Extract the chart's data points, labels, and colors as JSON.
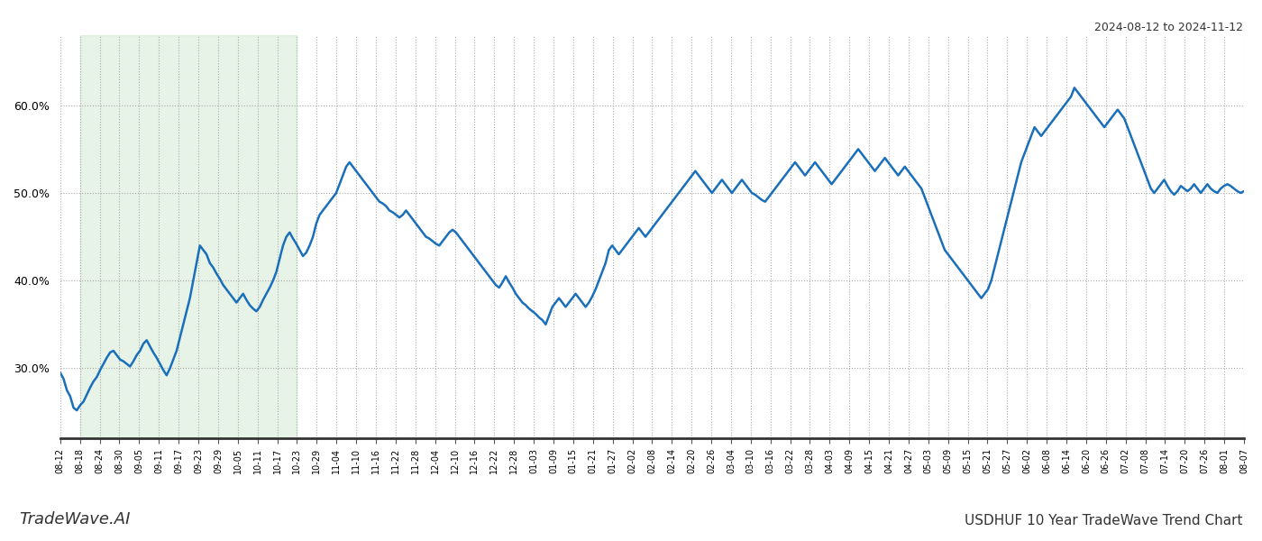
{
  "title_top_right": "2024-08-12 to 2024-11-12",
  "title_bottom_left": "TradeWave.AI",
  "title_bottom_right": "USDHUF 10 Year TradeWave Trend Chart",
  "line_color": "#1a6fba",
  "line_width": 1.8,
  "shade_color": "#c8e6c8",
  "shade_alpha": 0.45,
  "shade_start_label": "08-18",
  "shade_end_label": "10-23",
  "ylim": [
    22,
    68
  ],
  "yticks": [
    30,
    40,
    50,
    60
  ],
  "ytick_labels": [
    "30.0%",
    "40.0%",
    "50.0%",
    "60.0%"
  ],
  "background_color": "#ffffff",
  "grid_color": "#aaaaaa",
  "x_labels": [
    "08-12",
    "08-18",
    "08-24",
    "08-30",
    "09-05",
    "09-11",
    "09-17",
    "09-23",
    "09-29",
    "10-05",
    "10-11",
    "10-17",
    "10-23",
    "10-29",
    "11-04",
    "11-10",
    "11-16",
    "11-22",
    "11-28",
    "12-04",
    "12-10",
    "12-16",
    "12-22",
    "12-28",
    "01-03",
    "01-09",
    "01-15",
    "01-21",
    "01-27",
    "02-02",
    "02-08",
    "02-14",
    "02-20",
    "02-26",
    "03-04",
    "03-10",
    "03-16",
    "03-22",
    "03-28",
    "04-03",
    "04-09",
    "04-15",
    "04-21",
    "04-27",
    "05-03",
    "05-09",
    "05-15",
    "05-21",
    "05-27",
    "06-02",
    "06-08",
    "06-14",
    "06-20",
    "06-26",
    "07-02",
    "07-08",
    "07-14",
    "07-20",
    "07-26",
    "08-01",
    "08-07"
  ],
  "values": [
    29.5,
    28.8,
    27.5,
    26.8,
    25.5,
    25.2,
    25.8,
    26.2,
    27.0,
    27.8,
    28.5,
    29.0,
    29.8,
    30.5,
    31.2,
    31.8,
    32.0,
    31.5,
    31.0,
    30.8,
    30.5,
    30.2,
    30.8,
    31.5,
    32.0,
    32.8,
    33.2,
    32.5,
    31.8,
    31.2,
    30.5,
    29.8,
    29.2,
    30.0,
    31.0,
    32.0,
    33.5,
    35.0,
    36.5,
    38.0,
    40.0,
    42.0,
    44.0,
    43.5,
    43.0,
    42.0,
    41.5,
    40.8,
    40.2,
    39.5,
    39.0,
    38.5,
    38.0,
    37.5,
    38.0,
    38.5,
    37.8,
    37.2,
    36.8,
    36.5,
    37.0,
    37.8,
    38.5,
    39.2,
    40.0,
    41.0,
    42.5,
    44.0,
    45.0,
    45.5,
    44.8,
    44.2,
    43.5,
    42.8,
    43.2,
    44.0,
    45.0,
    46.5,
    47.5,
    48.0,
    48.5,
    49.0,
    49.5,
    50.0,
    51.0,
    52.0,
    53.0,
    53.5,
    53.0,
    52.5,
    52.0,
    51.5,
    51.0,
    50.5,
    50.0,
    49.5,
    49.0,
    48.8,
    48.5,
    48.0,
    47.8,
    47.5,
    47.2,
    47.5,
    48.0,
    47.5,
    47.0,
    46.5,
    46.0,
    45.5,
    45.0,
    44.8,
    44.5,
    44.2,
    44.0,
    44.5,
    45.0,
    45.5,
    45.8,
    45.5,
    45.0,
    44.5,
    44.0,
    43.5,
    43.0,
    42.5,
    42.0,
    41.5,
    41.0,
    40.5,
    40.0,
    39.5,
    39.2,
    39.8,
    40.5,
    39.8,
    39.2,
    38.5,
    38.0,
    37.5,
    37.2,
    36.8,
    36.5,
    36.2,
    35.8,
    35.5,
    35.0,
    36.0,
    37.0,
    37.5,
    38.0,
    37.5,
    37.0,
    37.5,
    38.0,
    38.5,
    38.0,
    37.5,
    37.0,
    37.5,
    38.2,
    39.0,
    40.0,
    41.0,
    42.0,
    43.5,
    44.0,
    43.5,
    43.0,
    43.5,
    44.0,
    44.5,
    45.0,
    45.5,
    46.0,
    45.5,
    45.0,
    45.5,
    46.0,
    46.5,
    47.0,
    47.5,
    48.0,
    48.5,
    49.0,
    49.5,
    50.0,
    50.5,
    51.0,
    51.5,
    52.0,
    52.5,
    52.0,
    51.5,
    51.0,
    50.5,
    50.0,
    50.5,
    51.0,
    51.5,
    51.0,
    50.5,
    50.0,
    50.5,
    51.0,
    51.5,
    51.0,
    50.5,
    50.0,
    49.8,
    49.5,
    49.2,
    49.0,
    49.5,
    50.0,
    50.5,
    51.0,
    51.5,
    52.0,
    52.5,
    53.0,
    53.5,
    53.0,
    52.5,
    52.0,
    52.5,
    53.0,
    53.5,
    53.0,
    52.5,
    52.0,
    51.5,
    51.0,
    51.5,
    52.0,
    52.5,
    53.0,
    53.5,
    54.0,
    54.5,
    55.0,
    54.5,
    54.0,
    53.5,
    53.0,
    52.5,
    53.0,
    53.5,
    54.0,
    53.5,
    53.0,
    52.5,
    52.0,
    52.5,
    53.0,
    52.5,
    52.0,
    51.5,
    51.0,
    50.5,
    49.5,
    48.5,
    47.5,
    46.5,
    45.5,
    44.5,
    43.5,
    43.0,
    42.5,
    42.0,
    41.5,
    41.0,
    40.5,
    40.0,
    39.5,
    39.0,
    38.5,
    38.0,
    38.5,
    39.0,
    40.0,
    41.5,
    43.0,
    44.5,
    46.0,
    47.5,
    49.0,
    50.5,
    52.0,
    53.5,
    54.5,
    55.5,
    56.5,
    57.5,
    57.0,
    56.5,
    57.0,
    57.5,
    58.0,
    58.5,
    59.0,
    59.5,
    60.0,
    60.5,
    61.0,
    62.0,
    61.5,
    61.0,
    60.5,
    60.0,
    59.5,
    59.0,
    58.5,
    58.0,
    57.5,
    58.0,
    58.5,
    59.0,
    59.5,
    59.0,
    58.5,
    57.5,
    56.5,
    55.5,
    54.5,
    53.5,
    52.5,
    51.5,
    50.5,
    50.0,
    50.5,
    51.0,
    51.5,
    50.8,
    50.2,
    49.8,
    50.2,
    50.8,
    50.5,
    50.2,
    50.5,
    51.0,
    50.5,
    50.0,
    50.5,
    51.0,
    50.5,
    50.2,
    50.0,
    50.5,
    50.8,
    51.0,
    50.8,
    50.5,
    50.2,
    50.0,
    50.2
  ]
}
